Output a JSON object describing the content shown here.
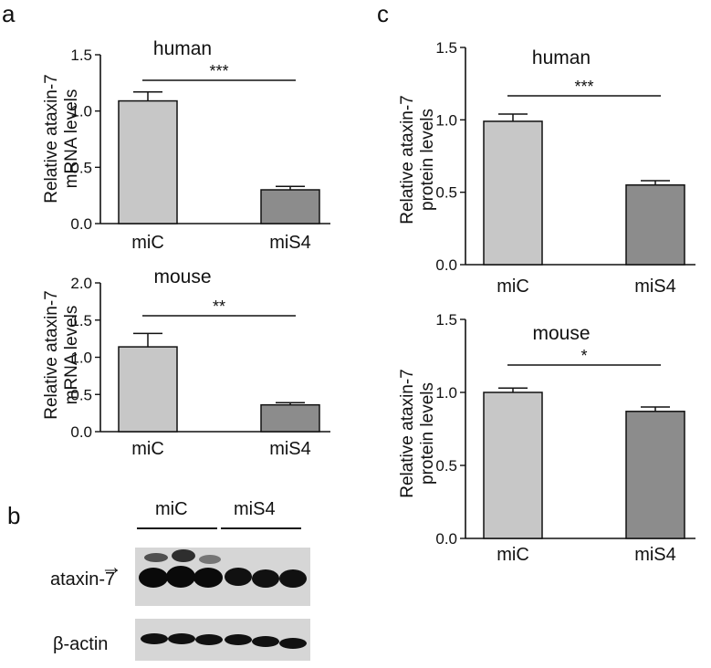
{
  "panels": {
    "a": "a",
    "b": "b",
    "c": "c"
  },
  "chart_data": [
    {
      "id": "a-human",
      "type": "bar",
      "title": "human",
      "ylabel": [
        "Relative ataxin-7",
        "mRNA levels"
      ],
      "categories": [
        "miC",
        "miS4"
      ],
      "values": [
        1.09,
        0.3
      ],
      "errors": [
        0.08,
        0.03
      ],
      "colors": [
        "#c7c7c7",
        "#8c8c8c"
      ],
      "ylim": [
        0,
        1.5
      ],
      "yticks": [
        0,
        0.5,
        1.0,
        1.5
      ],
      "ytick_labels": [
        "0.0",
        "0.5",
        "1.0",
        "1.5"
      ],
      "significance": "***",
      "grid": false
    },
    {
      "id": "a-mouse",
      "type": "bar",
      "title": "mouse",
      "ylabel": [
        "Relative ataxin-7",
        "mRNA levels"
      ],
      "categories": [
        "miC",
        "miS4"
      ],
      "values": [
        1.14,
        0.36
      ],
      "errors": [
        0.18,
        0.03
      ],
      "colors": [
        "#c7c7c7",
        "#8c8c8c"
      ],
      "ylim": [
        0,
        2.0
      ],
      "yticks": [
        0,
        0.5,
        1.0,
        1.5,
        2.0
      ],
      "ytick_labels": [
        "0.0",
        "0.5",
        "1.0",
        "1.5",
        "2.0"
      ],
      "significance": "**",
      "grid": false
    },
    {
      "id": "c-human",
      "type": "bar",
      "title": "human",
      "ylabel": [
        "Relative ataxin-7",
        "protein levels"
      ],
      "categories": [
        "miC",
        "miS4"
      ],
      "values": [
        0.99,
        0.55
      ],
      "errors": [
        0.05,
        0.03
      ],
      "colors": [
        "#c7c7c7",
        "#8c8c8c"
      ],
      "ylim": [
        0,
        1.5
      ],
      "yticks": [
        0,
        0.5,
        1.0,
        1.5
      ],
      "ytick_labels": [
        "0.0",
        "0.5",
        "1.0",
        "1.5"
      ],
      "significance": "***",
      "grid": false
    },
    {
      "id": "c-mouse",
      "type": "bar",
      "title": "mouse",
      "ylabel": [
        "Relative ataxin-7",
        "protein levels"
      ],
      "categories": [
        "miC",
        "miS4"
      ],
      "values": [
        1.0,
        0.87
      ],
      "errors": [
        0.03,
        0.03
      ],
      "colors": [
        "#c7c7c7",
        "#8c8c8c"
      ],
      "ylim": [
        0,
        1.5
      ],
      "yticks": [
        0,
        0.5,
        1.0,
        1.5
      ],
      "ytick_labels": [
        "0.0",
        "0.5",
        "1.0",
        "1.5"
      ],
      "significance": "*",
      "grid": false
    }
  ],
  "blot": {
    "groups": [
      "miC",
      "miS4"
    ],
    "rows": [
      "ataxin-7",
      "β-actin"
    ],
    "arrow": "→"
  }
}
